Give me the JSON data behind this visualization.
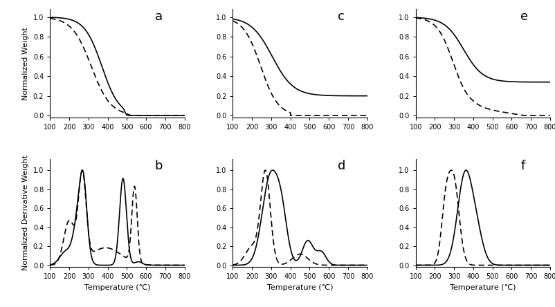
{
  "fig_size": [
    8.03,
    4.44
  ],
  "dpi": 100,
  "background": "#ffffff",
  "xticks": [
    100,
    200,
    300,
    400,
    500,
    600,
    700,
    800
  ],
  "tga_yticks": [
    0.0,
    0.2,
    0.4,
    0.6,
    0.8,
    1.0
  ],
  "dtg_yticks": [
    0.0,
    0.2,
    0.4,
    0.6,
    0.8,
    1.0
  ],
  "solid_color": "#000000",
  "dash_color": "#000000",
  "linewidth": 1.2,
  "label_fontsize": 13,
  "tick_fontsize": 7,
  "axis_label_fontsize": 8,
  "panel_labels": [
    "a",
    "b",
    "c",
    "d",
    "e",
    "f"
  ]
}
